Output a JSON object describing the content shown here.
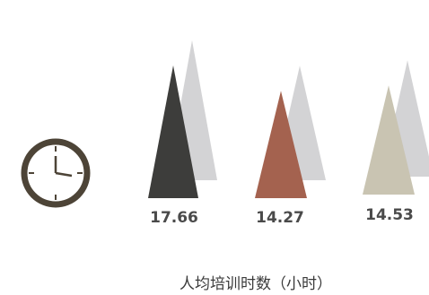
{
  "chart_data": {
    "type": "bar",
    "title": "人均培训时数（小时）",
    "categories": [
      "",
      "",
      ""
    ],
    "values": [
      17.66,
      14.27,
      14.53
    ],
    "value_labels": [
      "17.66",
      "14.27",
      "14.53"
    ],
    "ylim": [
      0,
      20
    ],
    "grid": false,
    "legend": "none",
    "bar_shape": "triangle",
    "colors": {
      "front": [
        "#3d3d3b",
        "#a4624f",
        "#c9c4b2"
      ],
      "shadow": "#d3d3d5",
      "clock_ring": "#4d4437",
      "text": "#4a4a4a"
    }
  },
  "decoration": {
    "icon": "clock-icon"
  }
}
